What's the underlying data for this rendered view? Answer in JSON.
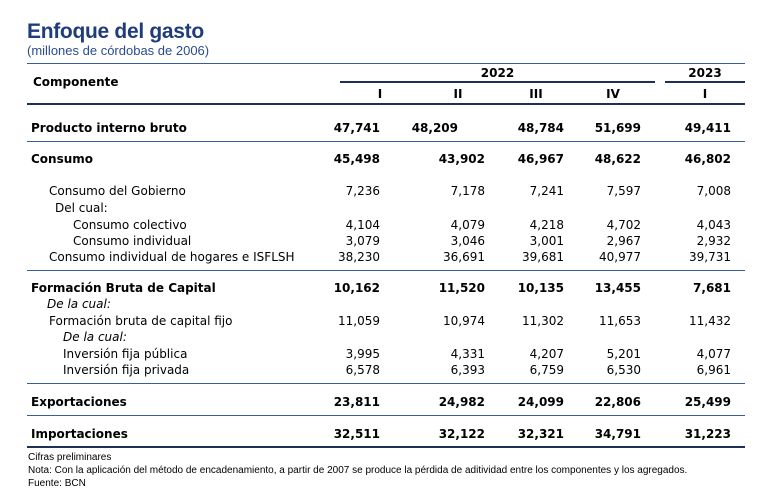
{
  "header": {
    "title": "Enfoque del gasto",
    "subtitle": "(millones de córdobas de 2006)"
  },
  "table": {
    "component_label": "Componente",
    "year_2022": "2022",
    "year_2023": "2023",
    "quarters": [
      "I",
      "II",
      "III",
      "IV",
      "I"
    ],
    "rows": [
      {
        "label": "Producto interno bruto",
        "values": [
          "47,741",
          "48,209",
          "48,784",
          "51,699",
          "49,411"
        ]
      },
      {
        "label": "Consumo",
        "values": [
          "45,498",
          "43,902",
          "46,967",
          "48,622",
          "46,802"
        ]
      },
      {
        "label": "Consumo del Gobierno",
        "values": [
          "7,236",
          "7,178",
          "7,241",
          "7,597",
          "7,008"
        ]
      },
      {
        "label": "Del cual:",
        "values": []
      },
      {
        "label": "Consumo colectivo",
        "values": [
          "4,104",
          "4,079",
          "4,218",
          "4,702",
          "4,043"
        ]
      },
      {
        "label": "Consumo individual",
        "values": [
          "3,079",
          "3,046",
          "3,001",
          "2,967",
          "2,932"
        ]
      },
      {
        "label": "Consumo individual de hogares e ISFLSH",
        "values": [
          "38,230",
          "36,691",
          "39,681",
          "40,977",
          "39,731"
        ]
      },
      {
        "label": "Formación Bruta de Capital",
        "values": [
          "10,162",
          "11,520",
          "10,135",
          "13,455",
          "7,681"
        ]
      },
      {
        "label": "De la cual:",
        "values": []
      },
      {
        "label": "Formación bruta de capital fijo",
        "values": [
          "11,059",
          "10,974",
          "11,302",
          "11,653",
          "11,432"
        ]
      },
      {
        "label": "De la cual:",
        "values": []
      },
      {
        "label": "Inversión fija pública",
        "values": [
          "3,995",
          "4,331",
          "4,207",
          "5,201",
          "4,077"
        ]
      },
      {
        "label": "Inversión fija privada",
        "values": [
          "6,578",
          "6,393",
          "6,759",
          "6,530",
          "6,961"
        ]
      },
      {
        "label": "Exportaciones",
        "values": [
          "23,811",
          "24,982",
          "24,099",
          "22,806",
          "25,499"
        ]
      },
      {
        "label": "Importaciones",
        "values": [
          "32,511",
          "32,122",
          "32,321",
          "34,791",
          "31,223"
        ]
      }
    ]
  },
  "footer": {
    "note1": "Cifras preliminares",
    "note2": "Nota: Con la aplicación del método de encadenamiento, a partir de 2007 se produce la pérdida de aditividad entre los componentes y los agregados.",
    "source": "Fuente: BCN"
  },
  "colors": {
    "title": "#1f3d7a",
    "rules": "#1f2f5a"
  }
}
